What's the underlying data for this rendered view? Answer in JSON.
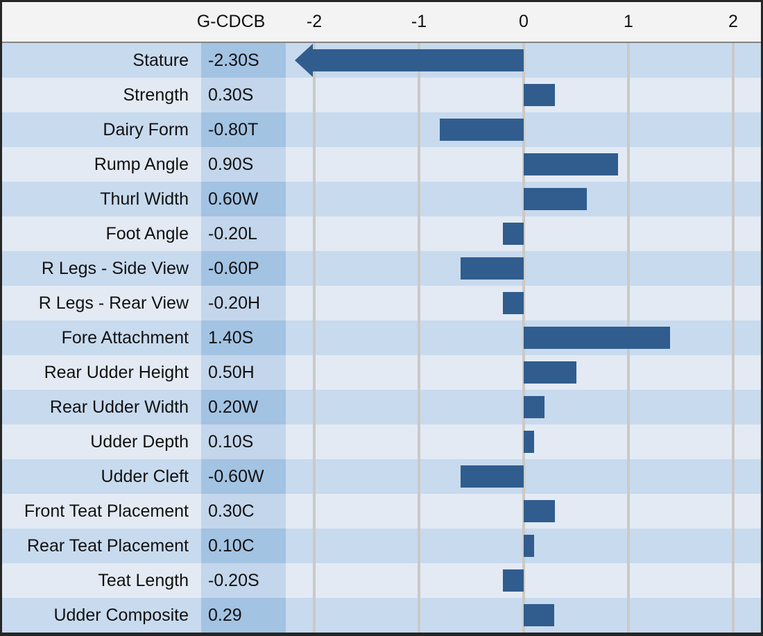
{
  "chart_data": {
    "type": "bar",
    "orientation": "horizontal",
    "title": "",
    "value_column_header": "G-CDCB",
    "x_ticks": [
      -2,
      -1,
      0,
      1,
      2
    ],
    "x_tick_labels": [
      "-2",
      "-1",
      "0",
      "1",
      "2"
    ],
    "xlim": [
      -2.27,
      2.27
    ],
    "grid": true,
    "legend": false,
    "rows": [
      {
        "trait": "Stature",
        "value_label": "-2.30S",
        "value": -2.3,
        "off_scale_left": true
      },
      {
        "trait": "Strength",
        "value_label": "0.30S",
        "value": 0.3
      },
      {
        "trait": "Dairy Form",
        "value_label": "-0.80T",
        "value": -0.8
      },
      {
        "trait": "Rump Angle",
        "value_label": "0.90S",
        "value": 0.9
      },
      {
        "trait": "Thurl Width",
        "value_label": "0.60W",
        "value": 0.6
      },
      {
        "trait": "Foot Angle",
        "value_label": "-0.20L",
        "value": -0.2
      },
      {
        "trait": "R Legs - Side View",
        "value_label": "-0.60P",
        "value": -0.6
      },
      {
        "trait": "R Legs - Rear View",
        "value_label": "-0.20H",
        "value": -0.2
      },
      {
        "trait": "Fore Attachment",
        "value_label": "1.40S",
        "value": 1.4
      },
      {
        "trait": "Rear Udder Height",
        "value_label": "0.50H",
        "value": 0.5
      },
      {
        "trait": "Rear Udder Width",
        "value_label": "0.20W",
        "value": 0.2
      },
      {
        "trait": "Udder Depth",
        "value_label": "0.10S",
        "value": 0.1
      },
      {
        "trait": "Udder Cleft",
        "value_label": "-0.60W",
        "value": -0.6
      },
      {
        "trait": "Front Teat Placement",
        "value_label": "0.30C",
        "value": 0.3
      },
      {
        "trait": "Rear Teat Placement",
        "value_label": "0.10C",
        "value": 0.1
      },
      {
        "trait": "Teat Length",
        "value_label": "-0.20S",
        "value": -0.2
      },
      {
        "trait": "Udder Composite",
        "value_label": "0.29",
        "value": 0.29
      }
    ],
    "colors": {
      "bar": "#305d8e",
      "row_dark": "#c8daee",
      "row_light": "#e3eaf4",
      "value_cell_dark": "#a3c3e3",
      "value_cell_light": "#c4d6eb",
      "header_bg": "#f3f3f3",
      "gridline": "#cbc9c6",
      "frame_border": "#262626",
      "text": "#111111"
    }
  }
}
